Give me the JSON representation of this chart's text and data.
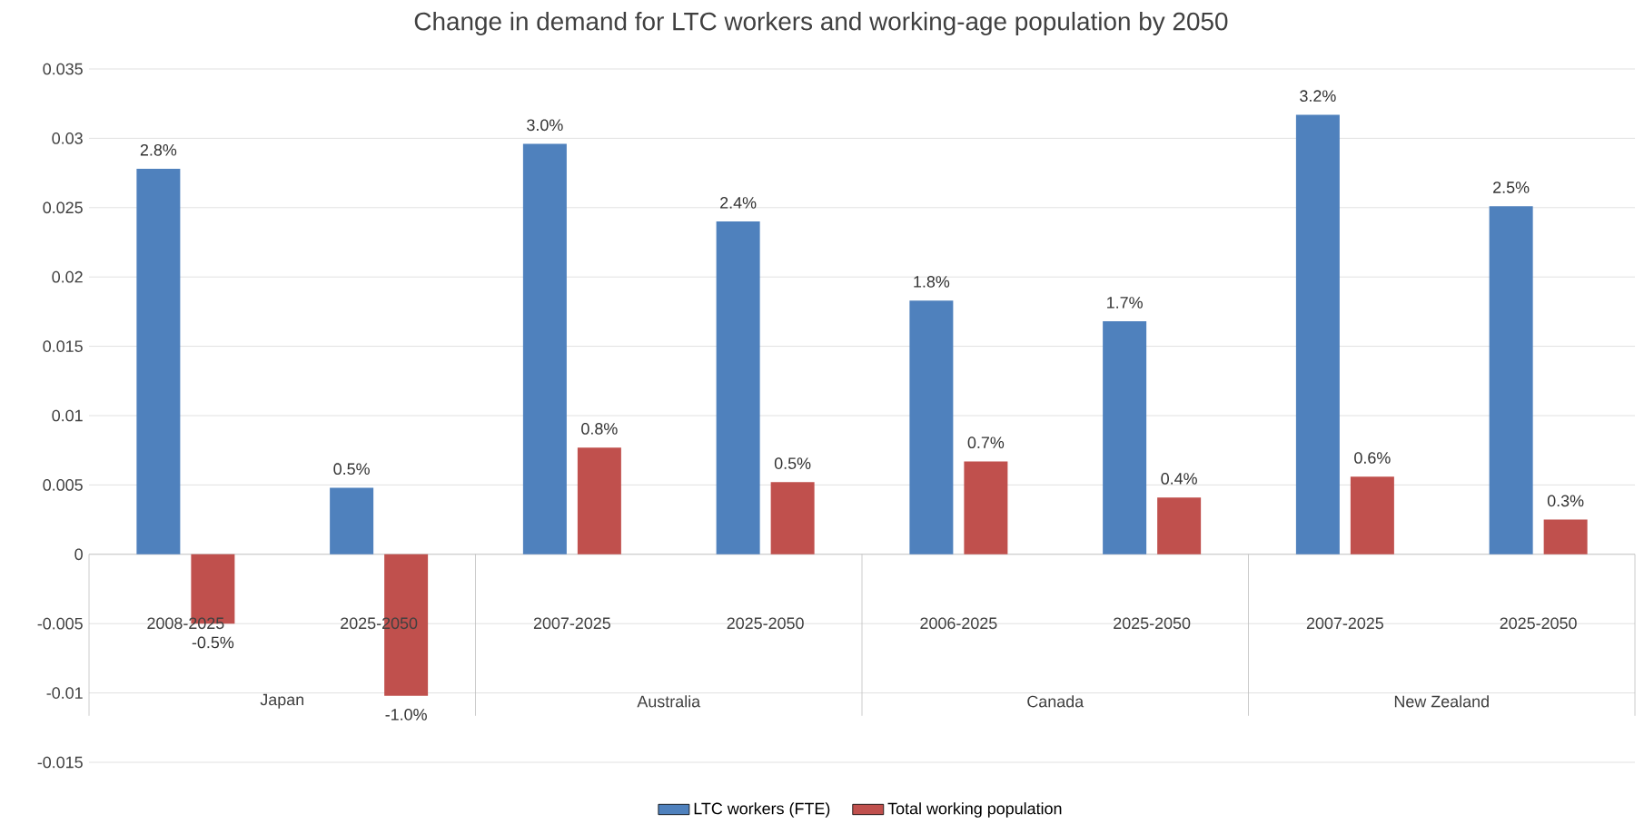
{
  "chart_data": {
    "type": "bar",
    "title": "Change in demand for LTC workers and working-age population by 2050",
    "categories": [
      "2008-2025",
      "2025-2050",
      "2007-2025",
      "2025-2050",
      "2006-2025",
      "2025-2050",
      "2007-2025",
      "2025-2050"
    ],
    "annotations": [
      "Japan",
      "Australia",
      "Canada",
      "New Zealand"
    ],
    "series": [
      {
        "name": "LTC workers (FTE)",
        "color": "#4f81bd",
        "values": [
          0.0278,
          0.0048,
          0.0296,
          0.024,
          0.0183,
          0.0168,
          0.0317,
          0.0251
        ],
        "value_labels": [
          "2.8%",
          "0.5%",
          "3.0%",
          "2.4%",
          "1.8%",
          "1.7%",
          "3.2%",
          "2.5%"
        ]
      },
      {
        "name": "Total working population",
        "color": "#c0504d",
        "values": [
          -0.005,
          -0.0102,
          0.0077,
          0.0052,
          0.0067,
          0.0041,
          0.0056,
          0.0025
        ],
        "value_labels": [
          "-0.5%",
          "-1.0%",
          "0.8%",
          "0.5%",
          "0.7%",
          "0.4%",
          "0.6%",
          "0.3%"
        ]
      }
    ],
    "ylim": [
      -0.015,
      0.035
    ],
    "yticks": [
      -0.015,
      -0.01,
      -0.005,
      0,
      0.005,
      0.01,
      0.015,
      0.02,
      0.025,
      0.03,
      0.035
    ],
    "grid": "y",
    "legend": "bottom"
  }
}
